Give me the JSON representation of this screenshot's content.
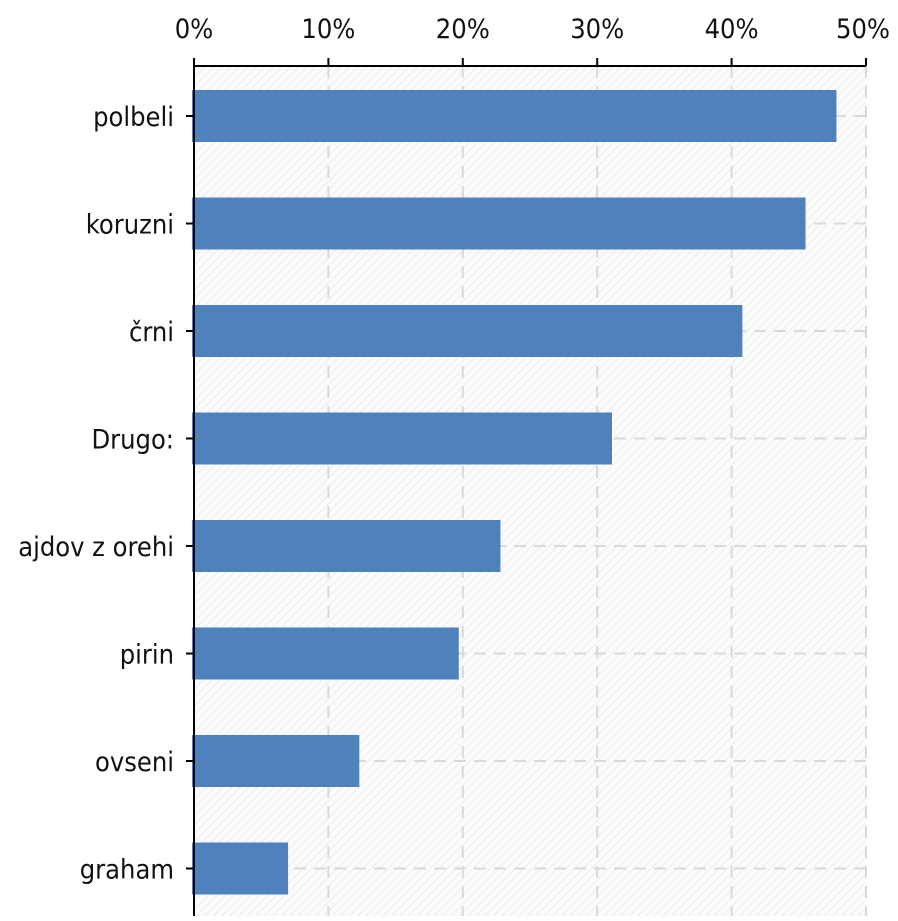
{
  "chart_data": {
    "type": "bar",
    "orientation": "horizontal",
    "categories": [
      "polbeli",
      "koruzni",
      "črni",
      "Drugo:",
      "ajdov z orehi",
      "pirin",
      "ovseni",
      "graham"
    ],
    "values": [
      47.8,
      45.5,
      40.8,
      31.1,
      22.8,
      19.7,
      12.3,
      7.0
    ],
    "xlim": [
      0,
      50
    ],
    "x_ticks": [
      "0%",
      "10%",
      "20%",
      "30%",
      "40%",
      "50%"
    ],
    "x_axis_position": "top",
    "grid": true,
    "legend": "none",
    "title": "",
    "xlabel": "",
    "ylabel": ""
  },
  "colors": {
    "bar": "#4f81bd",
    "grid": "#d9d9d9",
    "axis": "#000000",
    "plot_background": "#f4f4f4"
  }
}
